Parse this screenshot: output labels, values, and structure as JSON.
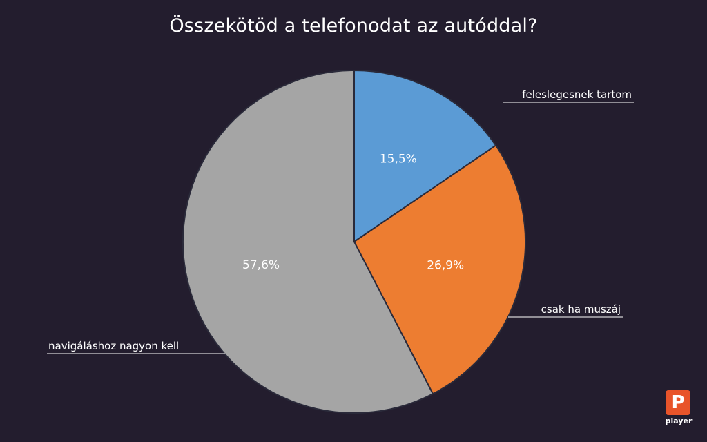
{
  "chart_data": {
    "type": "pie",
    "title": "Összekötöd a telefonodat az autóddal?",
    "slices": [
      {
        "label": "feleslegesnek tartom",
        "value": 15.5,
        "display": "15,5%",
        "color": "#5b9bd5"
      },
      {
        "label": "csak ha muszáj",
        "value": 26.9,
        "display": "26,9%",
        "color": "#ed7d31"
      },
      {
        "label": "navigáláshoz nagyon kell",
        "value": 57.6,
        "display": "57,6%",
        "color": "#a5a5a5"
      }
    ],
    "start_angle_deg": 0,
    "direction": "clockwise",
    "slice_border_color": "#2a2a3a",
    "leader_line_color": "#ffffff"
  },
  "logo": {
    "badge": "P",
    "text": "player",
    "color": "#e8542a"
  }
}
